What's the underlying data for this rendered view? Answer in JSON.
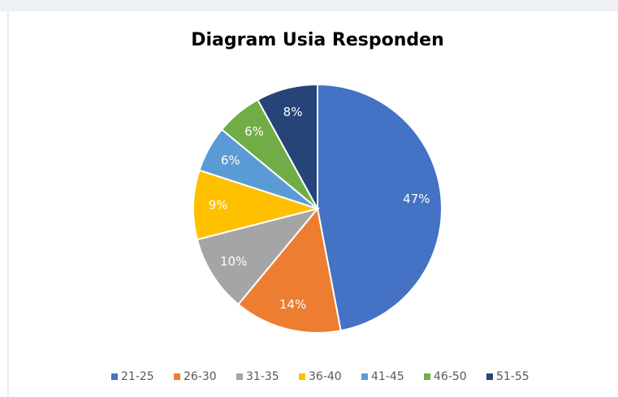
{
  "chart_data": {
    "type": "pie",
    "title": "Diagram Usia Responden",
    "categories": [
      "21-25",
      "26-30",
      "31-35",
      "36-40",
      "41-45",
      "46-50",
      "51-55"
    ],
    "values": [
      47,
      14,
      10,
      9,
      6,
      6,
      8
    ],
    "value_labels": [
      "47%",
      "14%",
      "10%",
      "9%",
      "6%",
      "6%",
      "8%"
    ],
    "colors": [
      "#4472c4",
      "#ed7d31",
      "#a5a5a5",
      "#ffc000",
      "#5b9bd5",
      "#70ad47",
      "#264478"
    ],
    "legend": "bottom"
  }
}
